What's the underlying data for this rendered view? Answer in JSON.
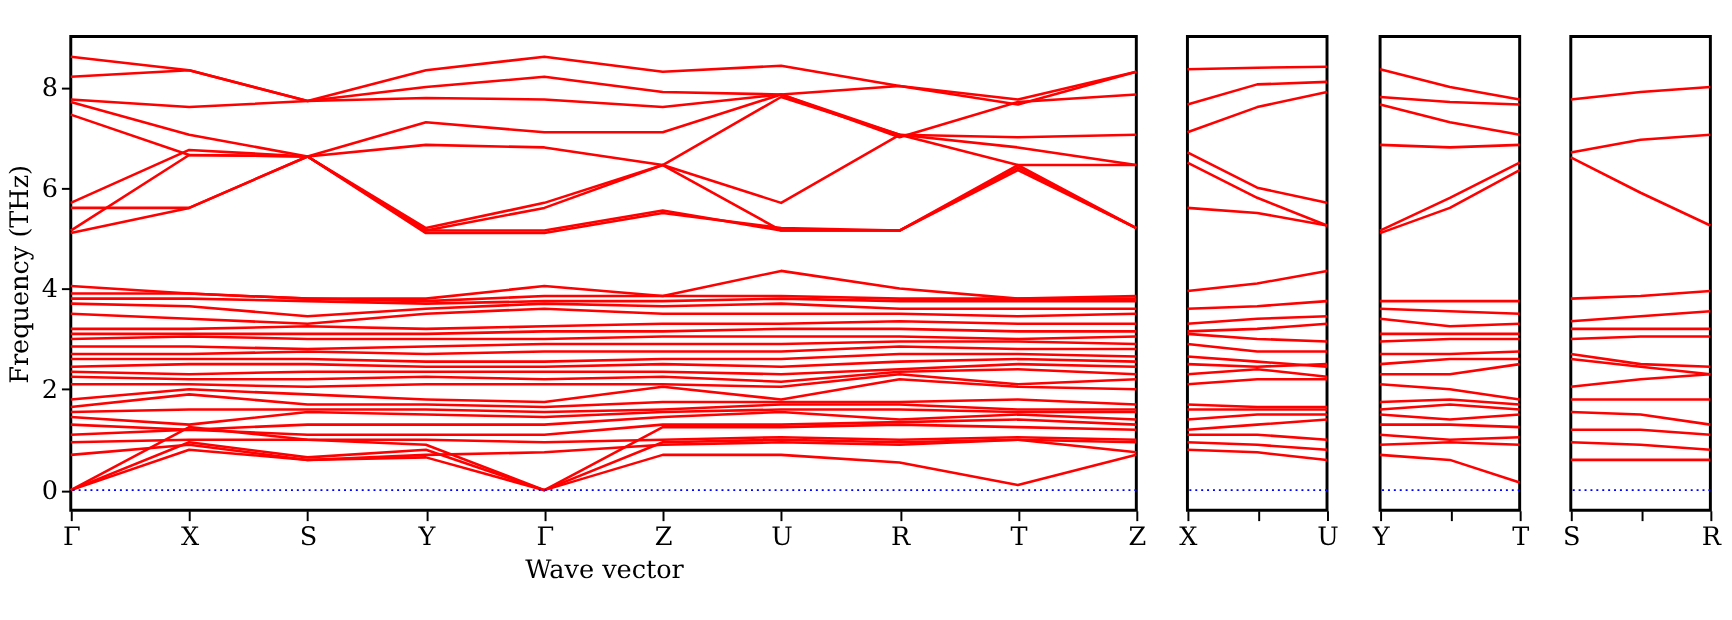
{
  "chart_data": [
    {
      "type": "line",
      "xlabel": "Wave vector",
      "ylabel": "Frequency (THz)",
      "categories": [
        "Γ",
        "X",
        "S",
        "Y",
        "Γ",
        "Z",
        "U",
        "R",
        "T",
        "Z"
      ],
      "ylim": [
        -0.4,
        9
      ],
      "yticks": [
        0,
        2,
        4,
        6,
        8
      ],
      "grid": false,
      "legend": false,
      "ref_lines": [
        {
          "axis": "y",
          "value": 0,
          "color": "#0000ff",
          "line_style": "dotted"
        }
      ],
      "series": [
        {
          "color": "#ff0000",
          "values": [
            0,
            0.8,
            0.6,
            0.65,
            0,
            0.7,
            0.7,
            0.55,
            0.1,
            0.7
          ]
        },
        {
          "color": "#ff0000",
          "values": [
            0,
            0.95,
            0.65,
            0.8,
            0,
            0.95,
            1.0,
            0.95,
            1.0,
            0.95
          ]
        },
        {
          "color": "#ff0000",
          "values": [
            0,
            1.25,
            1.0,
            0.9,
            0,
            1.25,
            1.25,
            1.3,
            1.25,
            1.2
          ]
        },
        {
          "color": "#ff0000",
          "values": [
            0.7,
            0.9,
            0.6,
            0.7,
            0.75,
            0.9,
            0.95,
            0.9,
            1.0,
            0.75
          ]
        },
        {
          "color": "#ff0000",
          "values": [
            0.95,
            1.0,
            1.0,
            1.0,
            0.95,
            1.0,
            1.05,
            1.0,
            1.05,
            1.0
          ]
        },
        {
          "color": "#ff0000",
          "values": [
            1.1,
            1.2,
            1.1,
            1.1,
            1.1,
            1.3,
            1.3,
            1.35,
            1.4,
            1.3
          ]
        },
        {
          "color": "#ff0000",
          "values": [
            1.3,
            1.2,
            1.3,
            1.3,
            1.3,
            1.45,
            1.55,
            1.4,
            1.5,
            1.4
          ]
        },
        {
          "color": "#ff0000",
          "values": [
            1.45,
            1.3,
            1.55,
            1.5,
            1.45,
            1.55,
            1.6,
            1.6,
            1.55,
            1.55
          ]
        },
        {
          "color": "#ff0000",
          "values": [
            1.55,
            1.6,
            1.6,
            1.6,
            1.55,
            1.6,
            1.7,
            1.7,
            1.6,
            1.6
          ]
        },
        {
          "color": "#ff0000",
          "values": [
            1.65,
            1.9,
            1.7,
            1.7,
            1.65,
            1.75,
            1.75,
            1.75,
            1.8,
            1.7
          ]
        },
        {
          "color": "#ff0000",
          "values": [
            1.8,
            2.0,
            1.9,
            1.8,
            1.75,
            2.05,
            1.8,
            2.2,
            2.05,
            2.0
          ]
        },
        {
          "color": "#ff0000",
          "values": [
            2.1,
            2.1,
            2.05,
            2.1,
            2.1,
            2.1,
            2.05,
            2.3,
            2.1,
            2.2
          ]
        },
        {
          "color": "#ff0000",
          "values": [
            2.25,
            2.2,
            2.2,
            2.25,
            2.2,
            2.25,
            2.15,
            2.35,
            2.4,
            2.3
          ]
        },
        {
          "color": "#ff0000",
          "values": [
            2.35,
            2.3,
            2.35,
            2.35,
            2.35,
            2.35,
            2.3,
            2.4,
            2.5,
            2.45
          ]
        },
        {
          "color": "#ff0000",
          "values": [
            2.45,
            2.5,
            2.5,
            2.45,
            2.45,
            2.5,
            2.45,
            2.55,
            2.6,
            2.55
          ]
        },
        {
          "color": "#ff0000",
          "values": [
            2.6,
            2.6,
            2.6,
            2.55,
            2.55,
            2.6,
            2.6,
            2.7,
            2.7,
            2.65
          ]
        },
        {
          "color": "#ff0000",
          "values": [
            2.7,
            2.7,
            2.75,
            2.7,
            2.75,
            2.75,
            2.75,
            2.85,
            2.8,
            2.8
          ]
        },
        {
          "color": "#ff0000",
          "values": [
            2.85,
            2.85,
            2.8,
            2.85,
            2.9,
            2.9,
            2.9,
            2.95,
            2.95,
            2.9
          ]
        },
        {
          "color": "#ff0000",
          "values": [
            3.0,
            3.05,
            3.0,
            3.0,
            3.0,
            3.05,
            3.05,
            3.05,
            3.0,
            3.05
          ]
        },
        {
          "color": "#ff0000",
          "values": [
            3.1,
            3.1,
            3.1,
            3.1,
            3.15,
            3.15,
            3.2,
            3.2,
            3.15,
            3.15
          ]
        },
        {
          "color": "#ff0000",
          "values": [
            3.2,
            3.2,
            3.25,
            3.2,
            3.25,
            3.3,
            3.3,
            3.35,
            3.3,
            3.3
          ]
        },
        {
          "color": "#ff0000",
          "values": [
            3.5,
            3.4,
            3.3,
            3.5,
            3.6,
            3.5,
            3.5,
            3.5,
            3.45,
            3.5
          ]
        },
        {
          "color": "#ff0000",
          "values": [
            3.7,
            3.65,
            3.45,
            3.6,
            3.7,
            3.65,
            3.7,
            3.6,
            3.6,
            3.6
          ]
        },
        {
          "color": "#ff0000",
          "values": [
            3.8,
            3.8,
            3.75,
            3.7,
            3.75,
            3.75,
            3.8,
            3.75,
            3.75,
            3.75
          ]
        },
        {
          "color": "#ff0000",
          "values": [
            3.9,
            3.9,
            3.8,
            3.75,
            3.85,
            3.85,
            3.85,
            3.8,
            3.8,
            3.8
          ]
        },
        {
          "color": "#ff0000",
          "values": [
            4.05,
            3.9,
            3.8,
            3.8,
            4.05,
            3.85,
            4.35,
            4.0,
            3.8,
            3.85
          ]
        },
        {
          "color": "#ff0000",
          "values": [
            5.1,
            5.6,
            6.62,
            5.1,
            5.1,
            5.5,
            5.2,
            5.15,
            6.35,
            5.2
          ]
        },
        {
          "color": "#ff0000",
          "values": [
            5.15,
            6.65,
            6.62,
            5.15,
            5.15,
            5.55,
            5.15,
            5.15,
            6.4,
            5.2
          ]
        },
        {
          "color": "#ff0000",
          "values": [
            5.6,
            5.6,
            6.62,
            5.15,
            5.6,
            6.45,
            5.15,
            5.15,
            6.45,
            5.2
          ]
        },
        {
          "color": "#ff0000",
          "values": [
            5.7,
            6.75,
            6.62,
            5.2,
            5.7,
            6.45,
            5.7,
            7.05,
            6.45,
            6.45
          ]
        },
        {
          "color": "#ff0000",
          "values": [
            7.45,
            6.65,
            6.62,
            6.85,
            6.8,
            6.45,
            7.8,
            7.05,
            6.8,
            6.45
          ]
        },
        {
          "color": "#ff0000",
          "values": [
            7.7,
            7.05,
            6.62,
            7.3,
            7.1,
            7.1,
            7.85,
            7.05,
            7.0,
            7.05
          ]
        },
        {
          "color": "#ff0000",
          "values": [
            7.75,
            7.6,
            7.72,
            7.78,
            7.75,
            7.6,
            7.85,
            7.0,
            7.7,
            7.85
          ]
        },
        {
          "color": "#ff0000",
          "values": [
            8.2,
            8.33,
            7.72,
            8.0,
            8.2,
            7.9,
            7.85,
            8.02,
            7.75,
            8.3
          ]
        },
        {
          "color": "#ff0000",
          "values": [
            8.6,
            8.33,
            7.72,
            8.33,
            8.6,
            8.3,
            8.42,
            8.02,
            7.65,
            8.3
          ]
        }
      ]
    },
    {
      "type": "line",
      "categories": [
        "X",
        null,
        "U"
      ],
      "ylim": [
        -0.4,
        9
      ],
      "tick_labels": "x",
      "grid": false,
      "legend": false,
      "ref_lines": [
        {
          "axis": "y",
          "value": 0,
          "color": "#0000ff",
          "line_style": "dotted"
        }
      ],
      "series": [
        {
          "color": "#ff0000",
          "values": [
            0.8,
            0.75,
            0.6
          ]
        },
        {
          "color": "#ff0000",
          "values": [
            0.95,
            0.9,
            0.8
          ]
        },
        {
          "color": "#ff0000",
          "values": [
            1.1,
            1.1,
            1.0
          ]
        },
        {
          "color": "#ff0000",
          "values": [
            1.2,
            1.3,
            1.4
          ]
        },
        {
          "color": "#ff0000",
          "values": [
            1.4,
            1.5,
            1.5
          ]
        },
        {
          "color": "#ff0000",
          "values": [
            1.6,
            1.6,
            1.6
          ]
        },
        {
          "color": "#ff0000",
          "values": [
            1.7,
            1.65,
            1.65
          ]
        },
        {
          "color": "#ff0000",
          "values": [
            2.1,
            2.2,
            2.2
          ]
        },
        {
          "color": "#ff0000",
          "values": [
            2.3,
            2.4,
            2.25
          ]
        },
        {
          "color": "#ff0000",
          "values": [
            2.5,
            2.45,
            2.5
          ]
        },
        {
          "color": "#ff0000",
          "values": [
            2.65,
            2.55,
            2.45
          ]
        },
        {
          "color": "#ff0000",
          "values": [
            2.9,
            2.75,
            2.75
          ]
        },
        {
          "color": "#ff0000",
          "values": [
            3.1,
            3.0,
            2.95
          ]
        },
        {
          "color": "#ff0000",
          "values": [
            3.15,
            3.2,
            3.3
          ]
        },
        {
          "color": "#ff0000",
          "values": [
            3.3,
            3.4,
            3.45
          ]
        },
        {
          "color": "#ff0000",
          "values": [
            3.6,
            3.65,
            3.75
          ]
        },
        {
          "color": "#ff0000",
          "values": [
            3.95,
            4.1,
            4.35
          ]
        },
        {
          "color": "#ff0000",
          "values": [
            5.6,
            5.5,
            5.25
          ]
        },
        {
          "color": "#ff0000",
          "values": [
            6.5,
            5.8,
            5.25
          ]
        },
        {
          "color": "#ff0000",
          "values": [
            6.7,
            6.0,
            5.7
          ]
        },
        {
          "color": "#ff0000",
          "values": [
            7.1,
            7.6,
            7.9
          ]
        },
        {
          "color": "#ff0000",
          "values": [
            7.65,
            8.05,
            8.1
          ]
        },
        {
          "color": "#ff0000",
          "values": [
            8.35,
            8.38,
            8.4
          ]
        }
      ]
    },
    {
      "type": "line",
      "categories": [
        "Y",
        null,
        "T"
      ],
      "ylim": [
        -0.4,
        9
      ],
      "tick_labels": "x",
      "grid": false,
      "legend": false,
      "ref_lines": [
        {
          "axis": "y",
          "value": 0,
          "color": "#0000ff",
          "line_style": "dotted"
        }
      ],
      "series": [
        {
          "color": "#ff0000",
          "values": [
            0.7,
            0.6,
            0.15
          ]
        },
        {
          "color": "#ff0000",
          "values": [
            0.9,
            0.95,
            0.9
          ]
        },
        {
          "color": "#ff0000",
          "values": [
            1.1,
            1.0,
            1.05
          ]
        },
        {
          "color": "#ff0000",
          "values": [
            1.3,
            1.3,
            1.25
          ]
        },
        {
          "color": "#ff0000",
          "values": [
            1.5,
            1.4,
            1.5
          ]
        },
        {
          "color": "#ff0000",
          "values": [
            1.6,
            1.7,
            1.6
          ]
        },
        {
          "color": "#ff0000",
          "values": [
            1.75,
            1.8,
            1.7
          ]
        },
        {
          "color": "#ff0000",
          "values": [
            2.1,
            2.0,
            1.8
          ]
        },
        {
          "color": "#ff0000",
          "values": [
            2.3,
            2.3,
            2.5
          ]
        },
        {
          "color": "#ff0000",
          "values": [
            2.5,
            2.6,
            2.6
          ]
        },
        {
          "color": "#ff0000",
          "values": [
            2.7,
            2.7,
            2.75
          ]
        },
        {
          "color": "#ff0000",
          "values": [
            2.95,
            3.0,
            3.0
          ]
        },
        {
          "color": "#ff0000",
          "values": [
            3.1,
            3.1,
            3.1
          ]
        },
        {
          "color": "#ff0000",
          "values": [
            3.4,
            3.25,
            3.3
          ]
        },
        {
          "color": "#ff0000",
          "values": [
            3.6,
            3.55,
            3.5
          ]
        },
        {
          "color": "#ff0000",
          "values": [
            3.75,
            3.75,
            3.75
          ]
        },
        {
          "color": "#ff0000",
          "values": [
            5.1,
            5.6,
            6.35
          ]
        },
        {
          "color": "#ff0000",
          "values": [
            5.15,
            5.8,
            6.5
          ]
        },
        {
          "color": "#ff0000",
          "values": [
            6.85,
            6.8,
            6.85
          ]
        },
        {
          "color": "#ff0000",
          "values": [
            7.65,
            7.3,
            7.05
          ]
        },
        {
          "color": "#ff0000",
          "values": [
            7.8,
            7.7,
            7.65
          ]
        },
        {
          "color": "#ff0000",
          "values": [
            8.35,
            8.0,
            7.75
          ]
        }
      ]
    },
    {
      "type": "line",
      "categories": [
        "S",
        null,
        "R"
      ],
      "ylim": [
        -0.4,
        9
      ],
      "tick_labels": "x",
      "grid": false,
      "legend": false,
      "ref_lines": [
        {
          "axis": "y",
          "value": 0,
          "color": "#0000ff",
          "line_style": "dotted"
        }
      ],
      "series": [
        {
          "color": "#ff0000",
          "values": [
            0.6,
            0.6,
            0.6
          ]
        },
        {
          "color": "#ff0000",
          "values": [
            0.95,
            0.9,
            0.8
          ]
        },
        {
          "color": "#ff0000",
          "values": [
            1.2,
            1.2,
            1.1
          ]
        },
        {
          "color": "#ff0000",
          "values": [
            1.55,
            1.5,
            1.3
          ]
        },
        {
          "color": "#ff0000",
          "values": [
            1.8,
            1.8,
            1.8
          ]
        },
        {
          "color": "#ff0000",
          "values": [
            2.05,
            2.2,
            2.3
          ]
        },
        {
          "color": "#ff0000",
          "values": [
            2.6,
            2.45,
            2.3
          ]
        },
        {
          "color": "#ff0000",
          "values": [
            2.7,
            2.5,
            2.45
          ]
        },
        {
          "color": "#ff0000",
          "values": [
            3.0,
            3.05,
            3.05
          ]
        },
        {
          "color": "#ff0000",
          "values": [
            3.2,
            3.2,
            3.2
          ]
        },
        {
          "color": "#ff0000",
          "values": [
            3.35,
            3.45,
            3.55
          ]
        },
        {
          "color": "#ff0000",
          "values": [
            3.8,
            3.85,
            3.95
          ]
        },
        {
          "color": "#ff0000",
          "values": [
            6.6,
            5.9,
            5.25
          ]
        },
        {
          "color": "#ff0000",
          "values": [
            6.7,
            6.95,
            7.05
          ]
        },
        {
          "color": "#ff0000",
          "values": [
            7.75,
            7.9,
            8.0
          ]
        }
      ]
    }
  ]
}
